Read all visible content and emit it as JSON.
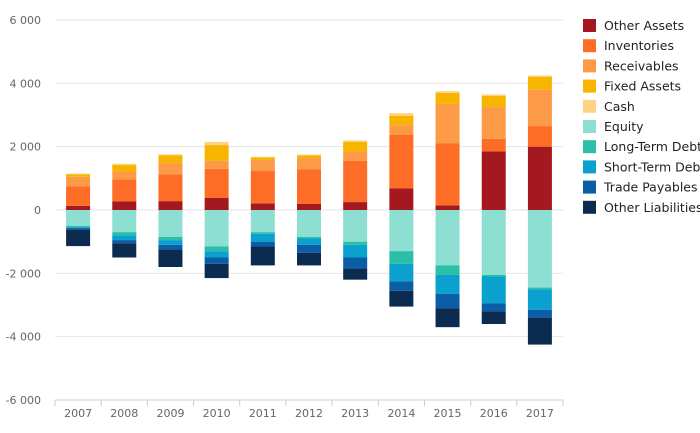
{
  "chart_data": {
    "type": "bar",
    "stacked": true,
    "title": "",
    "xlabel": "",
    "ylabel": "",
    "ylim": [
      -6000,
      6000
    ],
    "yticks": [
      6000,
      4000,
      2000,
      0,
      -2000,
      -4000,
      -6000
    ],
    "ytick_labels": [
      "6 000",
      "4 000",
      "2 000",
      "0",
      "-2 000",
      "-4 000",
      "-6 000"
    ],
    "grid": true,
    "legend_position": "right",
    "categories": [
      "2007",
      "2008",
      "2009",
      "2010",
      "2011",
      "2012",
      "2013",
      "2014",
      "2015",
      "2016",
      "2017"
    ],
    "series": [
      {
        "name": "Other Assets",
        "color": "#a3191f",
        "values": [
          130,
          270,
          280,
          380,
          210,
          190,
          250,
          680,
          150,
          1850,
          2000
        ]
      },
      {
        "name": "Inventories",
        "color": "#fd6d26",
        "values": [
          620,
          700,
          850,
          920,
          1020,
          1100,
          1300,
          1700,
          1950,
          400,
          650
        ]
      },
      {
        "name": "Receivables",
        "color": "#fd9a47",
        "values": [
          300,
          250,
          350,
          250,
          350,
          350,
          300,
          300,
          1250,
          1000,
          1150
        ]
      },
      {
        "name": "Fixed Assets",
        "color": "#f7b500",
        "values": [
          80,
          200,
          250,
          500,
          80,
          80,
          300,
          300,
          350,
          350,
          400
        ]
      },
      {
        "name": "Cash",
        "color": "#fdd483",
        "values": [
          20,
          40,
          30,
          100,
          20,
          30,
          50,
          80,
          50,
          50,
          50
        ]
      },
      {
        "name": "Equity",
        "color": "#8ddfd2",
        "values": [
          -500,
          -700,
          -850,
          -1150,
          -700,
          -850,
          -1000,
          -1300,
          -1750,
          -2050,
          -2450
        ]
      },
      {
        "name": "Long-Term Debt",
        "color": "#2cbfa7",
        "values": [
          -50,
          -100,
          -100,
          -150,
          -50,
          -50,
          -100,
          -400,
          -300,
          -50,
          -50
        ]
      },
      {
        "name": "Short-Term Debt",
        "color": "#0aa1ce",
        "values": [
          -20,
          -150,
          -150,
          -200,
          -250,
          -200,
          -400,
          -550,
          -600,
          -850,
          -650
        ]
      },
      {
        "name": "Trade Payables",
        "color": "#0a5ea8",
        "values": [
          -50,
          -100,
          -150,
          -200,
          -150,
          -250,
          -350,
          -300,
          -450,
          -250,
          -250
        ]
      },
      {
        "name": "Other Liabilities",
        "color": "#0b2c50",
        "values": [
          -520,
          -450,
          -550,
          -450,
          -600,
          -400,
          -350,
          -500,
          -600,
          -400,
          -850
        ]
      }
    ]
  }
}
